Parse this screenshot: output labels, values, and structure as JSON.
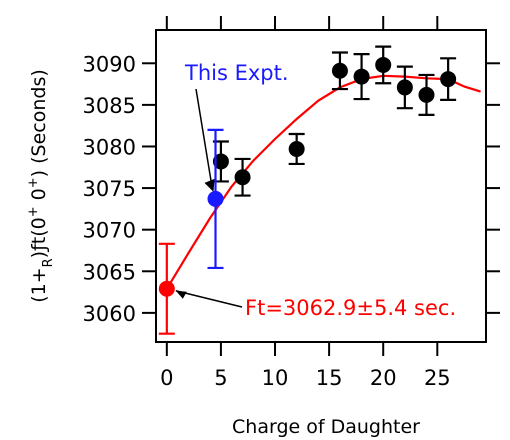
{
  "chart_data": {
    "type": "scatter",
    "xlabel": "Charge of Daughter",
    "ylabel": {
      "prefix": "(1+",
      "sub_r": "R",
      "mid": ")ƒt(0",
      "sup1": "+",
      "gap": "  0",
      "sup2": "+",
      "suffix": ")  (Seconds)"
    },
    "xlim": [
      -1,
      29.5
    ],
    "ylim": [
      3056.5,
      3094
    ],
    "x_ticks": [
      0,
      5,
      10,
      15,
      20,
      25
    ],
    "x_tick_labels": [
      "0",
      "5",
      "10",
      "15",
      "20",
      "25"
    ],
    "y_ticks": [
      3060,
      3065,
      3070,
      3075,
      3080,
      3085,
      3090
    ],
    "y_tick_labels": [
      "3060",
      "3065",
      "3070",
      "3075",
      "3080",
      "3085",
      "3090"
    ],
    "grid": false,
    "series": [
      {
        "marker": "circle",
        "color": "#000000",
        "points": [
          {
            "x": 5,
            "y": 3078.2,
            "err": 2.4
          },
          {
            "x": 7,
            "y": 3076.3,
            "err": 2.2
          },
          {
            "x": 12,
            "y": 3079.7,
            "err": 1.8
          },
          {
            "x": 16,
            "y": 3089.1,
            "err": 2.2
          },
          {
            "x": 18,
            "y": 3088.4,
            "err": 2.7
          },
          {
            "x": 20,
            "y": 3089.8,
            "err": 2.2
          },
          {
            "x": 22,
            "y": 3087.1,
            "err": 2.5
          },
          {
            "x": 24,
            "y": 3086.2,
            "err": 2.4
          },
          {
            "x": 26,
            "y": 3088.1,
            "err": 2.5
          }
        ]
      },
      {
        "marker": "circle",
        "color": "#1a1aff",
        "points": [
          {
            "x": 4.5,
            "y": 3073.7,
            "err": 8.3
          }
        ]
      },
      {
        "marker": "circle",
        "color": "#ff0000",
        "points": [
          {
            "x": 0,
            "y": 3062.9,
            "err": 5.4
          }
        ]
      },
      {
        "type": "line",
        "color": "#ff0000",
        "x": [
          0,
          2,
          4,
          6,
          8,
          10,
          12,
          14,
          16,
          18,
          20,
          22,
          24,
          26,
          27.5,
          29
        ],
        "y": [
          3062.9,
          3067.2,
          3071.4,
          3075.2,
          3078.3,
          3080.9,
          3083.3,
          3085.5,
          3087.1,
          3088.1,
          3088.5,
          3088.4,
          3088.2,
          3088.1,
          3087.2,
          3086.6
        ]
      }
    ],
    "annotations": [
      {
        "text": "This Expt.",
        "color": "#1a1aff",
        "arrow_to": {
          "x": 4.5,
          "y": 3073.7
        }
      },
      {
        "text": "Ft=3062.9±5.4 sec.",
        "color": "#ff0000",
        "arrow_to": {
          "x": 0,
          "y": 3062.9
        }
      }
    ]
  }
}
